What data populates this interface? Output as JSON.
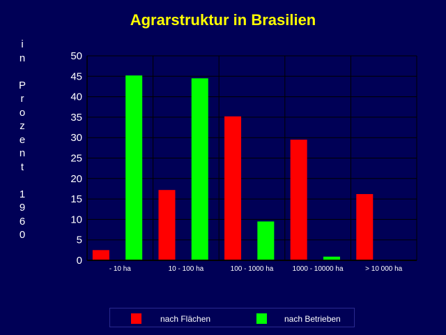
{
  "chart_data": {
    "type": "bar",
    "title": "Agrarstruktur in Brasilien",
    "ylabel": "i\nn\n\nP\nr\no\nz\ne\nn\nt\n\n1\n9\n6\n0",
    "xlabel": "",
    "categories": [
      "- 10 ha",
      "10 - 100 ha",
      "100 - 1000 ha",
      "1000 - 10000 ha",
      "> 10 000 ha"
    ],
    "ylim": [
      0,
      50
    ],
    "yticks": [
      "0",
      "5",
      "10",
      "15",
      "20",
      "25",
      "30",
      "35",
      "40",
      "45",
      "50"
    ],
    "grid": true,
    "legend_position": "bottom",
    "series": [
      {
        "name": "nach Flächen",
        "color": "#ff0000",
        "values": [
          2.5,
          17.2,
          35.2,
          29.5,
          16.2
        ]
      },
      {
        "name": "nach Betrieben",
        "color": "#00ff00",
        "values": [
          45.2,
          44.5,
          9.5,
          0.9,
          0.0
        ]
      }
    ]
  },
  "colors": {
    "background": "#000056",
    "title": "#ffff00",
    "grid": "#000000",
    "text": "#ffffff"
  }
}
